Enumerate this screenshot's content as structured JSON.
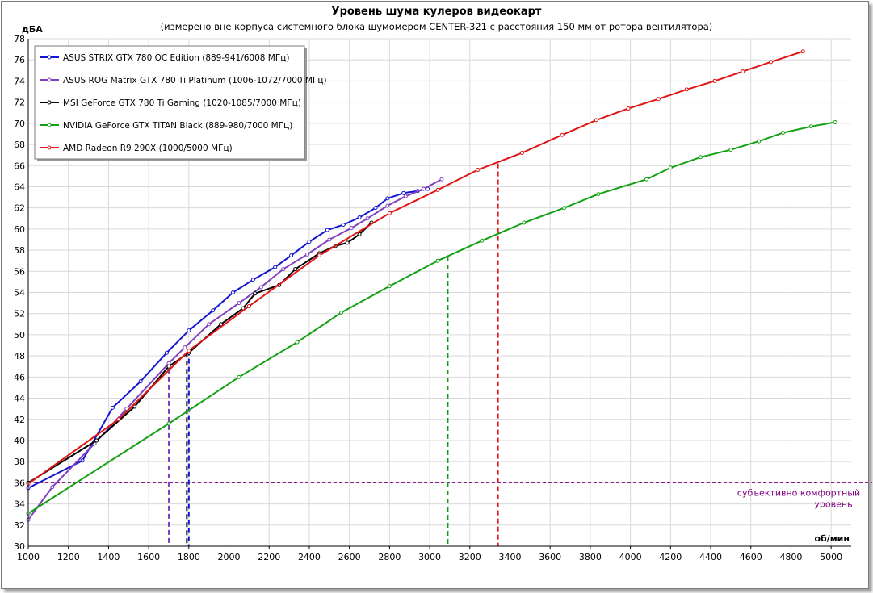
{
  "chart_data": {
    "type": "line",
    "title": "Уровень шума кулеров видеокарт",
    "subtitle": "(измерено вне корпуса системного блока шумомером CENTER-321 с расстояния 150 мм от ротора вентилятора)",
    "xlabel": "об/мин",
    "ylabel": "дБА",
    "xlim": [
      1000,
      5100
    ],
    "ylim": [
      30,
      78
    ],
    "x_ticks": [
      1000,
      1200,
      1400,
      1600,
      1800,
      2000,
      2200,
      2400,
      2600,
      2800,
      3000,
      3200,
      3400,
      3600,
      3800,
      4000,
      4200,
      4400,
      4600,
      4800,
      5000
    ],
    "y_ticks": [
      30,
      32,
      34,
      36,
      38,
      40,
      42,
      44,
      46,
      48,
      50,
      52,
      54,
      56,
      58,
      60,
      62,
      64,
      66,
      68,
      70,
      72,
      74,
      76,
      78
    ],
    "grid": true,
    "legend_position": "top-left",
    "series": [
      {
        "name": "ASUS STRIX GTX 780 OC Edition (889-941/6008 МГц)",
        "color": "#1414d4",
        "points": [
          [
            1000,
            35.5
          ],
          [
            1270,
            38.1
          ],
          [
            1420,
            43.1
          ],
          [
            1560,
            45.6
          ],
          [
            1690,
            48.3
          ],
          [
            1800,
            50.4
          ],
          [
            1920,
            52.3
          ],
          [
            2020,
            54.0
          ],
          [
            2120,
            55.2
          ],
          [
            2230,
            56.4
          ],
          [
            2310,
            57.5
          ],
          [
            2400,
            58.8
          ],
          [
            2490,
            59.9
          ],
          [
            2570,
            60.4
          ],
          [
            2650,
            61.1
          ],
          [
            2730,
            62.0
          ],
          [
            2790,
            62.9
          ],
          [
            2870,
            63.4
          ],
          [
            2940,
            63.6
          ],
          [
            2990,
            63.8
          ]
        ]
      },
      {
        "name": "ASUS ROG Matrix GTX 780 Ti Platinum (1006-1072/7000 МГц)",
        "color": "#7f3fbf",
        "points": [
          [
            1000,
            32.5
          ],
          [
            1120,
            35.6
          ],
          [
            1330,
            39.7
          ],
          [
            1490,
            43.0
          ],
          [
            1700,
            47.3
          ],
          [
            1780,
            48.8
          ],
          [
            1900,
            51.0
          ],
          [
            2050,
            53.0
          ],
          [
            2160,
            54.5
          ],
          [
            2270,
            56.2
          ],
          [
            2390,
            57.6
          ],
          [
            2500,
            59.0
          ],
          [
            2610,
            60.1
          ],
          [
            2690,
            61.0
          ],
          [
            2790,
            62.2
          ],
          [
            2880,
            63.1
          ],
          [
            2970,
            63.8
          ],
          [
            3060,
            64.7
          ]
        ]
      },
      {
        "name": "MSI GeForce GTX 780 Ti Gaming (1020-1085/7000 МГц)",
        "color": "#000000",
        "points": [
          [
            1000,
            36.0
          ],
          [
            1340,
            40.0
          ],
          [
            1530,
            43.2
          ],
          [
            1700,
            47.0
          ],
          [
            1800,
            48.3
          ],
          [
            1960,
            51.0
          ],
          [
            2070,
            52.5
          ],
          [
            2130,
            53.9
          ],
          [
            2250,
            54.7
          ],
          [
            2330,
            56.2
          ],
          [
            2450,
            57.7
          ],
          [
            2530,
            58.4
          ],
          [
            2590,
            58.7
          ],
          [
            2650,
            59.5
          ],
          [
            2710,
            60.6
          ]
        ]
      },
      {
        "name": "NVIDIA GeForce GTX TITAN Black (889-980/7000 МГц)",
        "color": "#14a014",
        "points": [
          [
            1000,
            33.1
          ],
          [
            1700,
            41.6
          ],
          [
            2050,
            46.0
          ],
          [
            2340,
            49.3
          ],
          [
            2560,
            52.1
          ],
          [
            2800,
            54.6
          ],
          [
            3040,
            57.0
          ],
          [
            3260,
            58.9
          ],
          [
            3470,
            60.6
          ],
          [
            3670,
            62.0
          ],
          [
            3840,
            63.3
          ],
          [
            4080,
            64.7
          ],
          [
            4200,
            65.8
          ],
          [
            4350,
            66.8
          ],
          [
            4500,
            67.5
          ],
          [
            4640,
            68.3
          ],
          [
            4760,
            69.1
          ],
          [
            4900,
            69.7
          ],
          [
            5020,
            70.1
          ]
        ]
      },
      {
        "name": "AMD Radeon R9 290X (1000/5000 МГц)",
        "color": "#e01414",
        "points": [
          [
            1000,
            35.9
          ],
          [
            1450,
            42.0
          ],
          [
            1800,
            48.5
          ],
          [
            2100,
            52.7
          ],
          [
            2450,
            57.5
          ],
          [
            2800,
            61.5
          ],
          [
            3040,
            63.7
          ],
          [
            3240,
            65.6
          ],
          [
            3460,
            67.2
          ],
          [
            3660,
            68.9
          ],
          [
            3830,
            70.3
          ],
          [
            3990,
            71.4
          ],
          [
            4140,
            72.3
          ],
          [
            4280,
            73.2
          ],
          [
            4420,
            74.0
          ],
          [
            4560,
            74.9
          ],
          [
            4700,
            75.8
          ],
          [
            4860,
            76.8
          ]
        ]
      }
    ],
    "reference_lines": {
      "horizontal": {
        "y": 36,
        "color": "#800080",
        "label_line1": "субъективно комфортный",
        "label_line2": "уровень"
      },
      "vertical": [
        {
          "x": 1700,
          "y_top": 46.8,
          "color": "#7f3fbf"
        },
        {
          "x": 1790,
          "y_top": 48.3,
          "color": "#000000"
        },
        {
          "x": 1800,
          "y_top": 48.5,
          "color": "#1414d4"
        },
        {
          "x": 3090,
          "y_top": 57.4,
          "color": "#14a014"
        },
        {
          "x": 3340,
          "y_top": 66.2,
          "color": "#e01414"
        }
      ]
    }
  }
}
